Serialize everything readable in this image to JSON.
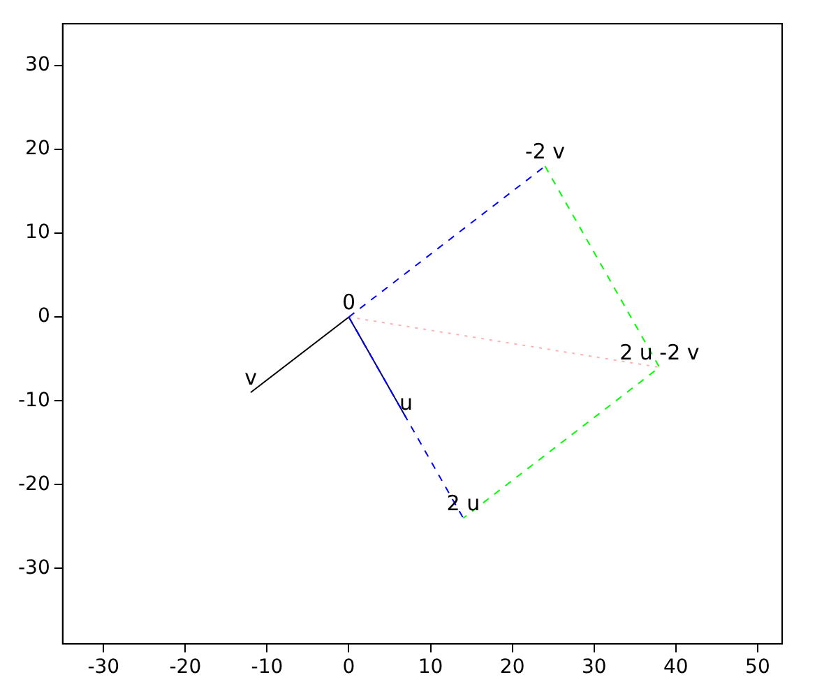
{
  "chart_data": {
    "type": "line",
    "xlim": [
      -35,
      53
    ],
    "ylim": [
      -39,
      35
    ],
    "xticks": [
      -30,
      -20,
      -10,
      0,
      10,
      20,
      30,
      40,
      50
    ],
    "yticks": [
      -30,
      -20,
      -10,
      0,
      10,
      20,
      30
    ],
    "grid": false,
    "legend": false,
    "series": [
      {
        "x": [
          0,
          14
        ],
        "values": [
          0,
          -24
        ],
        "color": "#0000ff",
        "line_style": "dashed"
      },
      {
        "x": [
          0,
          24
        ],
        "values": [
          0,
          18
        ],
        "color": "#0000ff",
        "line_style": "dashed"
      },
      {
        "x": [
          24,
          38,
          14
        ],
        "values": [
          18,
          -6,
          -24
        ],
        "color": "#00ff00",
        "line_style": "dashed"
      },
      {
        "x": [
          0,
          38
        ],
        "values": [
          0,
          -6
        ],
        "color": "#ffb0b0",
        "line_style": "dotted"
      },
      {
        "x": [
          0,
          7
        ],
        "values": [
          0,
          -12
        ],
        "color": "#000080",
        "line_style": "solid"
      },
      {
        "x": [
          0,
          -12
        ],
        "values": [
          0,
          -9
        ],
        "color": "#000000",
        "line_style": "solid"
      }
    ],
    "annotations": [
      {
        "text": "0",
        "x": 0,
        "y": 0
      },
      {
        "text": "v",
        "x": -12,
        "y": -9
      },
      {
        "text": "u",
        "x": 7,
        "y": -12
      },
      {
        "text": "2 u",
        "x": 14,
        "y": -24
      },
      {
        "text": "-2 v",
        "x": 24,
        "y": 18
      },
      {
        "text": "2 u -2 v",
        "x": 38,
        "y": -6
      }
    ]
  }
}
